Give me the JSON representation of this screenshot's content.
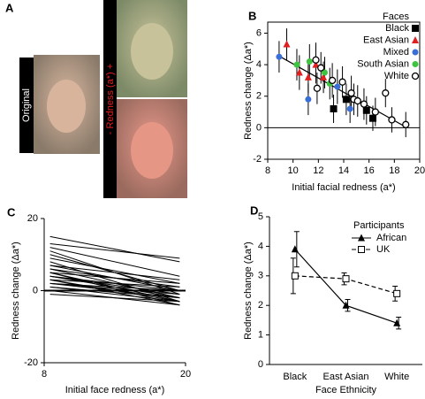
{
  "figure_a": {
    "label": "A",
    "original": "Original",
    "redness_axis": "- Redness (a*) +"
  },
  "chart_data": [
    {
      "type": "scatter",
      "label": "B",
      "xlabel": "Initial facial redness (a*)",
      "ylabel": "Redness change (Δa*)",
      "xlim": [
        8,
        20
      ],
      "ylim": [
        -2,
        6.7
      ],
      "xticks": [
        8,
        10,
        12,
        14,
        16,
        18,
        20
      ],
      "yticks": [
        -2,
        0,
        2,
        4,
        6
      ],
      "legend_title": "Faces",
      "legend_position": "upper right",
      "series": [
        {
          "name": "Black",
          "color": "#000000",
          "marker": "square",
          "x": [
            13.2,
            14.2,
            15.8,
            16.3
          ],
          "values": [
            1.2,
            1.8,
            1.1,
            0.6
          ],
          "errors": [
            0.9,
            1.0,
            0.9,
            0.8
          ]
        },
        {
          "name": "East Asian",
          "color": "#e02020",
          "marker": "triangle",
          "x": [
            9.5,
            10.5,
            11.2,
            11.8,
            12.4
          ],
          "values": [
            5.3,
            3.5,
            3.2,
            4.0,
            3.2
          ],
          "errors": [
            1.0,
            1.1,
            1.0,
            1.2,
            1.0
          ]
        },
        {
          "name": "Mixed",
          "color": "#3a6fd8",
          "marker": "circle",
          "x": [
            8.9,
            11.2,
            13.5,
            14.5
          ],
          "values": [
            4.5,
            1.8,
            2.6,
            1.2
          ],
          "errors": [
            1.0,
            1.0,
            1.1,
            0.9
          ]
        },
        {
          "name": "South Asian",
          "color": "#3ec43e",
          "marker": "circle",
          "x": [
            10.3,
            11.3,
            12.5,
            12.9
          ],
          "values": [
            4.0,
            4.2,
            3.5,
            2.8
          ],
          "errors": [
            1.0,
            1.1,
            1.0,
            1.0
          ]
        },
        {
          "name": "White",
          "color": "#000000",
          "marker": "open-circle",
          "x": [
            11.8,
            11.9,
            12.2,
            13.1,
            13.9,
            14.6,
            14.8,
            15.1,
            15.6,
            16.5,
            17.3,
            17.8,
            18.9
          ],
          "values": [
            4.3,
            2.5,
            3.8,
            3.0,
            2.9,
            2.2,
            1.8,
            1.7,
            1.5,
            1.0,
            2.2,
            0.5,
            0.2
          ],
          "errors": [
            1.1,
            1.0,
            1.0,
            1.1,
            1.0,
            1.1,
            1.0,
            1.0,
            1.0,
            0.9,
            0.9,
            0.8,
            0.8
          ]
        }
      ],
      "trend_line": {
        "x": [
          9,
          19
        ],
        "values": [
          4.5,
          0
        ]
      }
    },
    {
      "type": "line",
      "label": "C",
      "xlabel": "Initial face redness (a*)",
      "ylabel": "Redness change (Δa*)",
      "xlim": [
        8,
        20
      ],
      "ylim": [
        -20,
        20
      ],
      "xticks": [
        8,
        20
      ],
      "yticks": [
        -20,
        0,
        20
      ],
      "color": "#000000",
      "x": [
        8.5,
        19.5
      ],
      "series": [
        {
          "values": [
            15,
            8
          ]
        },
        {
          "values": [
            13,
            9
          ]
        },
        {
          "values": [
            12,
            4
          ]
        },
        {
          "values": [
            11,
            -1
          ]
        },
        {
          "values": [
            10,
            0
          ]
        },
        {
          "values": [
            9,
            2
          ]
        },
        {
          "values": [
            8,
            -3
          ]
        },
        {
          "values": [
            7,
            3
          ]
        },
        {
          "values": [
            7,
            0
          ]
        },
        {
          "values": [
            6,
            1
          ]
        },
        {
          "values": [
            6,
            -2
          ]
        },
        {
          "values": [
            5,
            -3
          ]
        },
        {
          "values": [
            5,
            -4
          ]
        },
        {
          "values": [
            5,
            2
          ]
        },
        {
          "values": [
            4,
            0
          ]
        },
        {
          "values": [
            4,
            -1
          ]
        },
        {
          "values": [
            4,
            -2
          ]
        },
        {
          "values": [
            3,
            1
          ]
        },
        {
          "values": [
            3,
            -3
          ]
        },
        {
          "values": [
            3,
            -4
          ]
        },
        {
          "values": [
            2,
            0
          ]
        },
        {
          "values": [
            2,
            -2
          ]
        },
        {
          "values": [
            2,
            -1
          ]
        },
        {
          "values": [
            1,
            -3
          ]
        },
        {
          "values": [
            1,
            -2
          ]
        },
        {
          "values": [
            0,
            -4
          ]
        },
        {
          "values": [
            -1,
            -3
          ]
        }
      ]
    },
    {
      "type": "line-error",
      "label": "D",
      "xlabel": "Face Ethnicity",
      "ylabel": "Redness change (Δa*)",
      "categories": [
        "Black",
        "East Asian",
        "White"
      ],
      "ylim": [
        0,
        5
      ],
      "yticks": [
        0,
        1,
        2,
        3,
        4,
        5
      ],
      "legend_title": "Participants",
      "legend_position": "upper right",
      "series": [
        {
          "name": "African",
          "color": "#000000",
          "marker": "triangle",
          "dash": "solid",
          "values": [
            3.9,
            2.0,
            1.4
          ],
          "errors": [
            0.6,
            0.2,
            0.2
          ]
        },
        {
          "name": "UK",
          "color": "#000000",
          "marker": "open-square",
          "dash": "dashed",
          "values": [
            3.0,
            2.9,
            2.4
          ],
          "errors": [
            0.6,
            0.2,
            0.25
          ]
        }
      ]
    }
  ]
}
